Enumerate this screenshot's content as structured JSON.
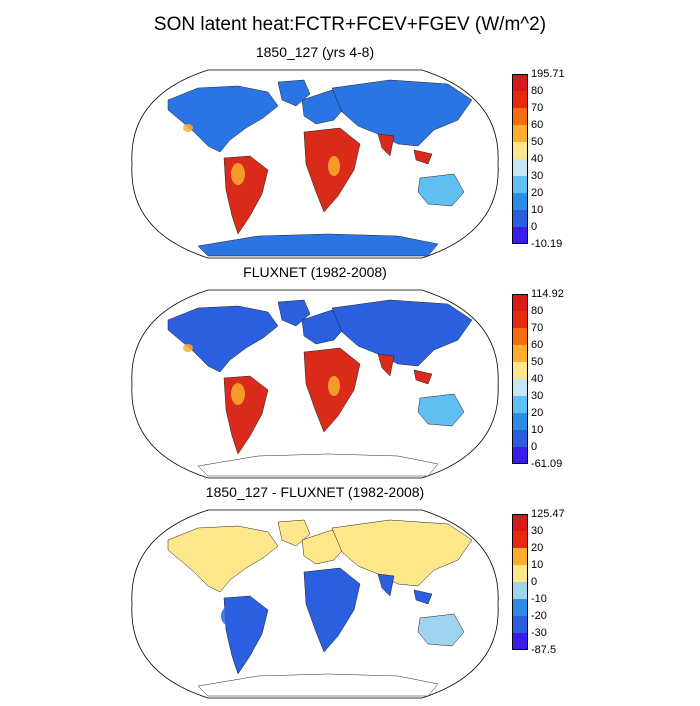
{
  "title": "SON latent heat:FCTR+FCEV+FGEV (W/m^2)",
  "panels": [
    {
      "title": "1850_127 (yrs 4-8)",
      "colorbar": {
        "labels": [
          "195.71",
          "80",
          "70",
          "60",
          "50",
          "40",
          "30",
          "20",
          "10",
          "0",
          "-10.19"
        ],
        "colors": [
          "#d7191c",
          "#e8290e",
          "#f46d0e",
          "#fdae2f",
          "#fee68a",
          "#c6e5f5",
          "#5fbff0",
          "#2b8ce6",
          "#2a5fe0",
          "#3a1de8"
        ]
      },
      "fills": {
        "ocean": "#ffffff",
        "land": "#2b74e6",
        "tropics": "#d92a1a",
        "mid": "#5fbff0",
        "warm": "#fdae2f"
      }
    },
    {
      "title": "FLUXNET (1982-2008)",
      "colorbar": {
        "labels": [
          "114.92",
          "80",
          "70",
          "60",
          "50",
          "40",
          "30",
          "20",
          "10",
          "0",
          "-61.09"
        ],
        "colors": [
          "#d7191c",
          "#e8290e",
          "#f46d0e",
          "#fdae2f",
          "#fee68a",
          "#c6e5f5",
          "#5fbff0",
          "#2b8ce6",
          "#2a5fe0",
          "#3a1de8"
        ]
      },
      "fills": {
        "ocean": "#ffffff",
        "land": "#2b5fe0",
        "tropics": "#d92a1a",
        "mid": "#5fbff0",
        "warm": "#fdae2f"
      }
    },
    {
      "title": "1850_127 - FLUXNET (1982-2008)",
      "colorbar": {
        "labels": [
          "125.47",
          "30",
          "20",
          "10",
          "0",
          "-10",
          "-20",
          "-30",
          "-87.5"
        ],
        "colors": [
          "#d7191c",
          "#e8290e",
          "#fdae2f",
          "#fee68a",
          "#9fd3ef",
          "#2b8ce6",
          "#2a5fe0",
          "#3a1de8"
        ]
      },
      "fills": {
        "ocean": "#ffffff",
        "land": "#fee68a",
        "tropics": "#2a5fe0",
        "mid": "#9fd3ef",
        "warm": "#fdae2f"
      }
    }
  ]
}
